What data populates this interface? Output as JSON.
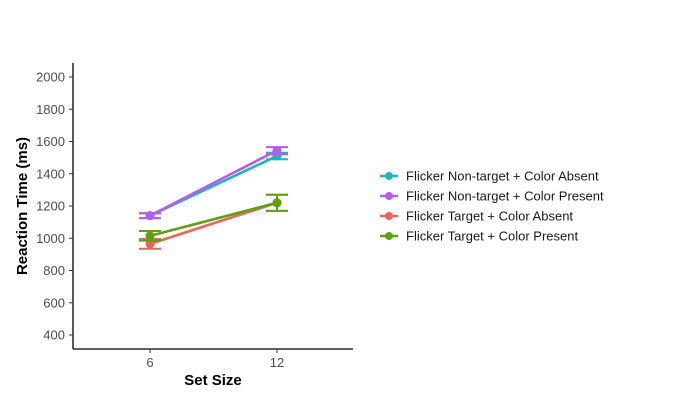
{
  "chart_data": {
    "type": "line",
    "title": "",
    "xlabel": "Set Size",
    "ylabel": "Reaction Time (ms)",
    "categories": [
      "6",
      "12"
    ],
    "yticks": [
      400,
      600,
      800,
      1000,
      1200,
      1400,
      1600,
      1800,
      2000
    ],
    "ylim": [
      320,
      2080
    ],
    "grid": false,
    "legend_position": "right",
    "series": [
      {
        "name": "Flicker Non-target + Color Absent",
        "color": "#1fb5b8",
        "values": [
          1140,
          1510
        ],
        "error": [
          [
            1125,
            1155
          ],
          [
            1490,
            1530
          ]
        ]
      },
      {
        "name": "Flicker Non-target + Color Present",
        "color": "#b55cf0",
        "values": [
          1140,
          1545
        ],
        "error": [
          [
            1125,
            1155
          ],
          [
            1520,
            1565
          ]
        ]
      },
      {
        "name": "Flicker Target + Color Absent",
        "color": "#ee6557",
        "values": [
          965,
          1220
        ],
        "error": [
          [
            935,
            995
          ],
          [
            1170,
            1270
          ]
        ]
      },
      {
        "name": "Flicker Target + Color Present",
        "color": "#5ea012",
        "values": [
          1015,
          1220
        ],
        "error": [
          [
            985,
            1045
          ],
          [
            1170,
            1270
          ]
        ]
      }
    ]
  }
}
